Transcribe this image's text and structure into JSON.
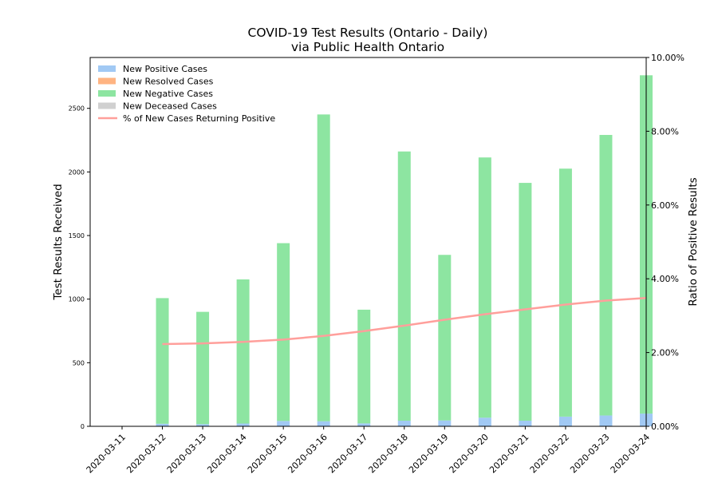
{
  "chart_data": {
    "type": "bar",
    "title": "COVID-19 Test Results (Ontario - Daily)",
    "subtitle": "via Public Health Ontario",
    "ylabel": "Test Results Received",
    "y2label": "Ratio of Positive Results",
    "ylim": [
      0,
      2900
    ],
    "y2lim": [
      0,
      10
    ],
    "yticks": [
      0,
      500,
      1000,
      1500,
      2000,
      2500
    ],
    "y2ticks": [
      "0.00%",
      "2.00%",
      "4.00%",
      "6.00%",
      "8.00%",
      "10.00%"
    ],
    "categories": [
      "2020-03-11",
      "2020-03-12",
      "2020-03-13",
      "2020-03-14",
      "2020-03-15",
      "2020-03-16",
      "2020-03-17",
      "2020-03-18",
      "2020-03-19",
      "2020-03-20",
      "2020-03-21",
      "2020-03-22",
      "2020-03-23",
      "2020-03-24"
    ],
    "stacking": "stacked",
    "legend_position": "top-left",
    "grid": false,
    "series": [
      {
        "name": "New Positive Cases",
        "color": "#a1c9f4",
        "kind": "bar",
        "values": [
          0,
          20,
          17,
          22,
          42,
          40,
          23,
          44,
          46,
          68,
          44,
          76,
          85,
          100
        ]
      },
      {
        "name": "New Resolved Cases",
        "color": "#ffb482",
        "kind": "bar",
        "values": [
          0,
          0,
          0,
          0,
          0,
          0,
          0,
          0,
          0,
          0,
          0,
          0,
          0,
          0
        ]
      },
      {
        "name": "New Negative Cases",
        "color": "#8de5a1",
        "kind": "bar",
        "values": [
          0,
          988,
          883,
          1133,
          1398,
          2412,
          894,
          2117,
          1302,
          2046,
          1870,
          1950,
          2206,
          2660
        ]
      },
      {
        "name": "New Deceased Cases",
        "color": "#d0d0d0",
        "kind": "bar",
        "values": [
          0,
          0,
          0,
          0,
          0,
          0,
          0,
          0,
          0,
          0,
          0,
          0,
          0,
          0
        ]
      },
      {
        "name": "% of New Cases Returning Positive",
        "color": "#ff9f9b",
        "kind": "line",
        "axis": "right",
        "x": [
          "2020-03-12",
          "2020-03-13",
          "2020-03-14",
          "2020-03-15",
          "2020-03-16",
          "2020-03-17",
          "2020-03-18",
          "2020-03-19",
          "2020-03-20",
          "2020-03-21",
          "2020-03-22",
          "2020-03-23",
          "2020-03-24"
        ],
        "values": [
          2.23,
          2.25,
          2.29,
          2.35,
          2.45,
          2.58,
          2.73,
          2.89,
          3.04,
          3.17,
          3.3,
          3.41,
          3.48
        ]
      }
    ]
  }
}
